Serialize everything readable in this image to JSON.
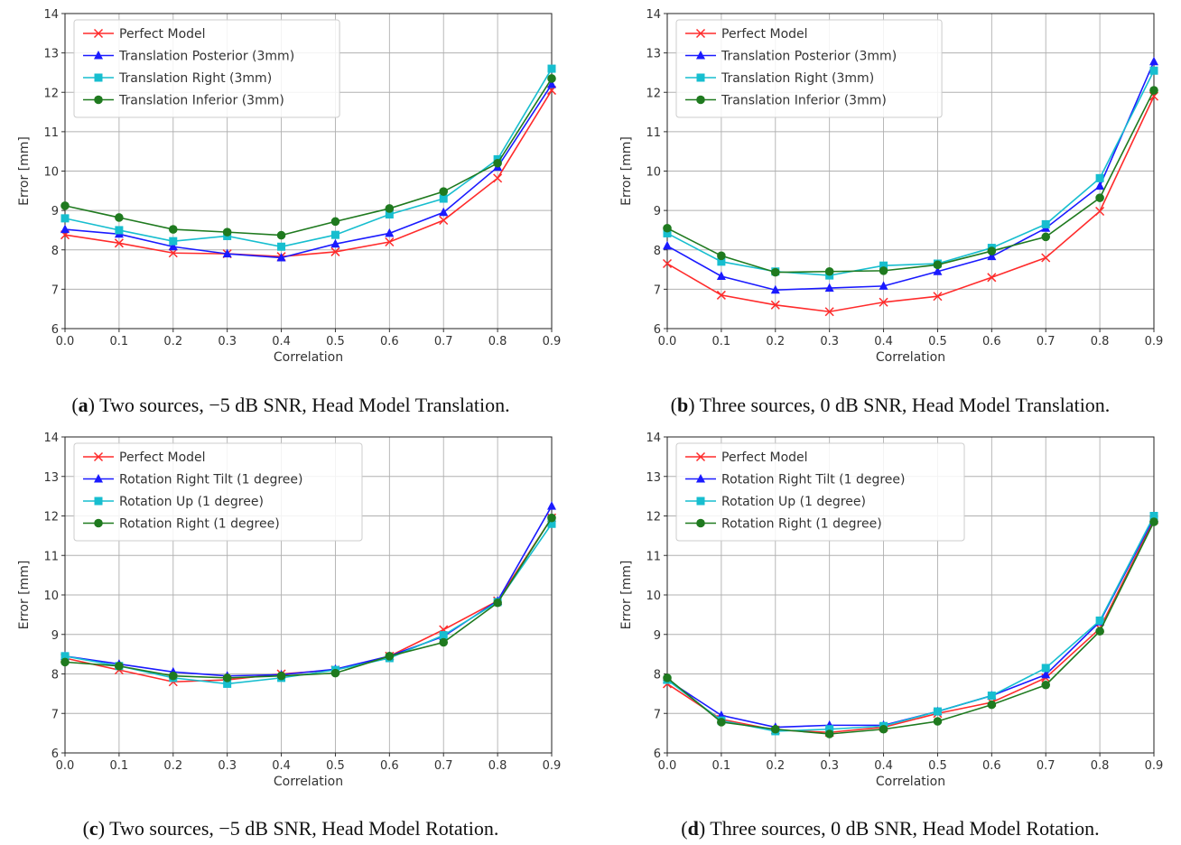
{
  "chart_data": [
    {
      "type": "line",
      "caption": {
        "label": "a",
        "text": " Two sources, −5 dB SNR, Head Model Translation."
      },
      "xlabel": "Correlation",
      "ylabel": "Error [mm]",
      "xlim": [
        0.0,
        0.9
      ],
      "ylim": [
        6,
        14
      ],
      "grid": true,
      "legend_position": "top-left",
      "x": [
        0.0,
        0.1,
        0.2,
        0.3,
        0.4,
        0.5,
        0.6,
        0.7,
        0.8,
        0.9
      ],
      "xticks": [
        "0.0",
        "0.1",
        "0.2",
        "0.3",
        "0.4",
        "0.5",
        "0.6",
        "0.7",
        "0.8",
        "0.9"
      ],
      "yticks": [
        "6",
        "7",
        "8",
        "9",
        "10",
        "11",
        "12",
        "13",
        "14"
      ],
      "series": [
        {
          "name": "Perfect Model",
          "color": "#ff2b2b",
          "marker": "x",
          "values": [
            8.38,
            8.17,
            7.92,
            7.9,
            7.83,
            7.95,
            8.2,
            8.75,
            9.82,
            12.05
          ]
        },
        {
          "name": "Translation Posterior (3mm)",
          "color": "#1a1aff",
          "marker": "triangle",
          "values": [
            8.52,
            8.4,
            8.08,
            7.9,
            7.8,
            8.15,
            8.42,
            8.95,
            10.1,
            12.2
          ]
        },
        {
          "name": "Translation Right (3mm)",
          "color": "#17becf",
          "marker": "square",
          "values": [
            8.8,
            8.5,
            8.22,
            8.35,
            8.08,
            8.38,
            8.9,
            9.3,
            10.3,
            12.6
          ]
        },
        {
          "name": "Translation Inferior (3mm)",
          "color": "#1f7a1f",
          "marker": "circle",
          "values": [
            9.12,
            8.82,
            8.52,
            8.45,
            8.37,
            8.72,
            9.05,
            9.48,
            10.2,
            12.35
          ]
        }
      ]
    },
    {
      "type": "line",
      "caption": {
        "label": "b",
        "text": " Three sources, 0 dB SNR, Head Model Translation."
      },
      "xlabel": "Correlation",
      "ylabel": "Error [mm]",
      "xlim": [
        0.0,
        0.9
      ],
      "ylim": [
        6,
        14
      ],
      "grid": true,
      "legend_position": "top-left",
      "x": [
        0.0,
        0.1,
        0.2,
        0.3,
        0.4,
        0.5,
        0.6,
        0.7,
        0.8,
        0.9
      ],
      "xticks": [
        "0.0",
        "0.1",
        "0.2",
        "0.3",
        "0.4",
        "0.5",
        "0.6",
        "0.7",
        "0.8",
        "0.9"
      ],
      "yticks": [
        "6",
        "7",
        "8",
        "9",
        "10",
        "11",
        "12",
        "13",
        "14"
      ],
      "series": [
        {
          "name": "Perfect Model",
          "color": "#ff2b2b",
          "marker": "x",
          "values": [
            7.65,
            6.85,
            6.6,
            6.43,
            6.67,
            6.82,
            7.3,
            7.8,
            8.98,
            11.9
          ]
        },
        {
          "name": "Translation Posterior (3mm)",
          "color": "#1a1aff",
          "marker": "triangle",
          "values": [
            8.1,
            7.33,
            6.98,
            7.03,
            7.08,
            7.45,
            7.83,
            8.55,
            9.62,
            12.78
          ]
        },
        {
          "name": "Translation Right (3mm)",
          "color": "#17becf",
          "marker": "square",
          "values": [
            8.42,
            7.7,
            7.45,
            7.35,
            7.6,
            7.65,
            8.05,
            8.65,
            9.82,
            12.55
          ]
        },
        {
          "name": "Translation Inferior (3mm)",
          "color": "#1f7a1f",
          "marker": "circle",
          "values": [
            8.55,
            7.85,
            7.43,
            7.45,
            7.47,
            7.62,
            7.97,
            8.33,
            9.32,
            12.05
          ]
        }
      ]
    },
    {
      "type": "line",
      "caption": {
        "label": "c",
        "text": " Two sources, −5 dB SNR, Head Model Rotation."
      },
      "xlabel": "Correlation",
      "ylabel": "Error [mm]",
      "xlim": [
        0.0,
        0.9
      ],
      "ylim": [
        6,
        14
      ],
      "grid": true,
      "legend_position": "top-left",
      "x": [
        0.0,
        0.1,
        0.2,
        0.3,
        0.4,
        0.5,
        0.6,
        0.7,
        0.8,
        0.9
      ],
      "xticks": [
        "0.0",
        "0.1",
        "0.2",
        "0.3",
        "0.4",
        "0.5",
        "0.6",
        "0.7",
        "0.8",
        "0.9"
      ],
      "yticks": [
        "6",
        "7",
        "8",
        "9",
        "10",
        "11",
        "12",
        "13",
        "14"
      ],
      "series": [
        {
          "name": "Perfect Model",
          "color": "#ff2b2b",
          "marker": "x",
          "values": [
            8.4,
            8.1,
            7.8,
            7.85,
            8.0,
            8.1,
            8.45,
            9.12,
            9.85,
            11.95
          ]
        },
        {
          "name": "Rotation Right Tilt (1 degree)",
          "color": "#1a1aff",
          "marker": "triangle",
          "values": [
            8.45,
            8.25,
            8.05,
            7.95,
            7.98,
            8.12,
            8.45,
            8.95,
            9.85,
            12.25
          ]
        },
        {
          "name": "Rotation Up (1 degree)",
          "color": "#17becf",
          "marker": "square",
          "values": [
            8.45,
            8.2,
            7.9,
            7.75,
            7.9,
            8.1,
            8.4,
            8.98,
            9.82,
            11.8
          ]
        },
        {
          "name": "Rotation Right (1 degree)",
          "color": "#1f7a1f",
          "marker": "circle",
          "values": [
            8.3,
            8.2,
            7.95,
            7.9,
            7.95,
            8.02,
            8.45,
            8.8,
            9.8,
            11.95
          ]
        }
      ]
    },
    {
      "type": "line",
      "caption": {
        "label": "d",
        "text": " Three sources, 0 dB SNR, Head Model Rotation."
      },
      "xlabel": "Correlation",
      "ylabel": "Error [mm]",
      "xlim": [
        0.0,
        0.9
      ],
      "ylim": [
        6,
        14
      ],
      "grid": true,
      "legend_position": "top-left",
      "x": [
        0.0,
        0.1,
        0.2,
        0.3,
        0.4,
        0.5,
        0.6,
        0.7,
        0.8,
        0.9
      ],
      "xticks": [
        "0.0",
        "0.1",
        "0.2",
        "0.3",
        "0.4",
        "0.5",
        "0.6",
        "0.7",
        "0.8",
        "0.9"
      ],
      "yticks": [
        "6",
        "7",
        "8",
        "9",
        "10",
        "11",
        "12",
        "13",
        "14"
      ],
      "series": [
        {
          "name": "Perfect Model",
          "color": "#ff2b2b",
          "marker": "x",
          "values": [
            7.75,
            6.85,
            6.58,
            6.52,
            6.65,
            7.0,
            7.28,
            7.9,
            9.15,
            11.9
          ]
        },
        {
          "name": "Rotation Right Tilt (1 degree)",
          "color": "#1a1aff",
          "marker": "triangle",
          "values": [
            7.85,
            6.95,
            6.65,
            6.7,
            6.7,
            7.05,
            7.45,
            7.98,
            9.32,
            11.95
          ]
        },
        {
          "name": "Rotation Up (1 degree)",
          "color": "#17becf",
          "marker": "square",
          "values": [
            7.85,
            6.82,
            6.55,
            6.6,
            6.68,
            7.05,
            7.45,
            8.15,
            9.35,
            12.0
          ]
        },
        {
          "name": "Rotation Right (1 degree)",
          "color": "#1f7a1f",
          "marker": "circle",
          "values": [
            7.9,
            6.78,
            6.6,
            6.48,
            6.6,
            6.8,
            7.22,
            7.72,
            9.08,
            11.85
          ]
        }
      ]
    }
  ]
}
